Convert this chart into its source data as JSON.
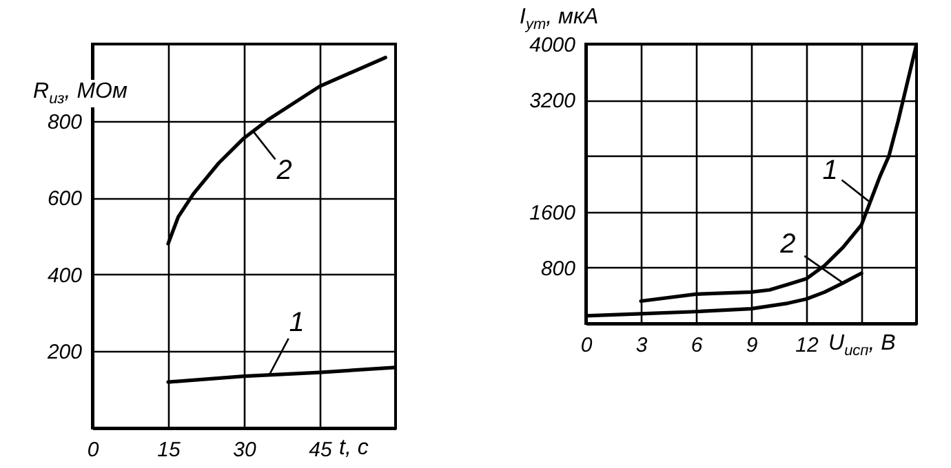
{
  "chart_data": [
    {
      "type": "line",
      "ylabel": "R$_{из}$, МОм",
      "xlabel": "t, с",
      "xlim": [
        0,
        60
      ],
      "ylim": [
        0,
        1000
      ],
      "xticks": [
        0,
        15,
        30,
        45
      ],
      "yticks": [
        200,
        400,
        600,
        800
      ],
      "grid": true,
      "line_style": "solid",
      "marker": "none",
      "series": [
        {
          "color": "#000000",
          "x": [
            15,
            30,
            45,
            60
          ],
          "values": [
            120,
            135,
            145,
            158
          ]
        },
        {
          "color": "#000000",
          "x": [
            15,
            17,
            20,
            25,
            30,
            35,
            45,
            58
          ],
          "values": [
            480,
            550,
            610,
            690,
            755,
            805,
            890,
            965
          ]
        }
      ],
      "annotations": [
        {
          "text": "1",
          "x": 35,
          "y": 138
        },
        {
          "text": "2",
          "x": 32,
          "y": 770
        }
      ]
    },
    {
      "type": "line",
      "ylabel": "I$_{ут}$, мкА",
      "xlabel": "U$_{исп}$, В",
      "xlim": [
        0,
        18
      ],
      "ylim": [
        0,
        4000
      ],
      "xticks": [
        0,
        3,
        6,
        9,
        12,
        {
          "value": 15,
          "label": null
        }
      ],
      "yticks": [
        800,
        1600,
        {
          "value": 2400,
          "label": null
        },
        3200,
        4000
      ],
      "grid": true,
      "line_style": "solid",
      "marker": "none",
      "series": [
        {
          "color": "#000000",
          "x": [
            3,
            6,
            9,
            10,
            11,
            12,
            13,
            14,
            15,
            16,
            16.5,
            17,
            17.5,
            18
          ],
          "values": [
            320,
            420,
            450,
            480,
            560,
            640,
            830,
            1090,
            1410,
            2100,
            2400,
            2900,
            3450,
            4000
          ]
        },
        {
          "color": "#000000",
          "x": [
            0,
            3,
            6,
            9,
            10,
            11,
            12,
            13,
            14,
            15
          ],
          "values": [
            110,
            140,
            170,
            210,
            250,
            290,
            350,
            450,
            580,
            720
          ]
        }
      ],
      "annotations": [
        {
          "text": "1",
          "x": 15.4,
          "y": 1750
        },
        {
          "text": "2",
          "x": 14,
          "y": 580
        }
      ]
    }
  ]
}
